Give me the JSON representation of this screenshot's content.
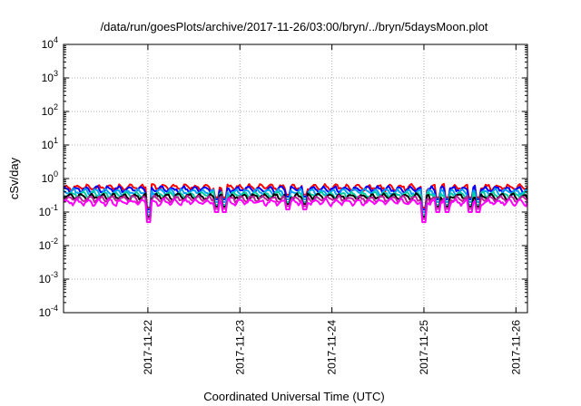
{
  "chart_data": {
    "type": "line",
    "title": "/data/run/goesPlots/archive/2017-11-26/03:00/bryn/../bryn/5daysMoon.plot",
    "xlabel": "Coordinated Universal Time (UTC)",
    "ylabel": "cSv/day",
    "yscale": "log",
    "ylim": [
      0.0001,
      10000
    ],
    "xlim": [
      "2017-11-21T02:00",
      "2017-11-26T03:00"
    ],
    "xticks": [
      "2017-11-22",
      "2017-11-23",
      "2017-11-24",
      "2017-11-25",
      "2017-11-26"
    ],
    "ytick_exponents": [
      "4",
      "3",
      "2",
      "1",
      "0",
      "-1",
      "-2",
      "-3",
      "-4"
    ],
    "grid": true,
    "series": [
      {
        "color": "#ff0000",
        "typical": 0.55
      },
      {
        "color": "#0000ff",
        "typical": 0.48
      },
      {
        "color": "#00a0ff",
        "typical": 0.4
      },
      {
        "color": "#00d0a0",
        "typical": 0.33
      },
      {
        "color": "#000000",
        "typical": 0.29
      },
      {
        "color": "#c0209a",
        "typical": 0.25
      },
      {
        "color": "#ff00ff",
        "typical": 0.2
      }
    ],
    "dips": [
      {
        "time": "2017-11-22T00:05",
        "value": 0.05
      },
      {
        "time": "2017-11-22T18:00",
        "value": 0.1
      },
      {
        "time": "2017-11-22T20:00",
        "value": 0.1
      },
      {
        "time": "2017-11-23T12:30",
        "value": 0.12
      },
      {
        "time": "2017-11-23T17:00",
        "value": 0.12
      },
      {
        "time": "2017-11-25T00:00",
        "value": 0.05
      },
      {
        "time": "2017-11-25T03:30",
        "value": 0.1
      },
      {
        "time": "2017-11-25T06:00",
        "value": 0.1
      },
      {
        "time": "2017-11-25T12:00",
        "value": 0.1
      },
      {
        "time": "2017-11-25T14:00",
        "value": 0.1
      }
    ]
  }
}
